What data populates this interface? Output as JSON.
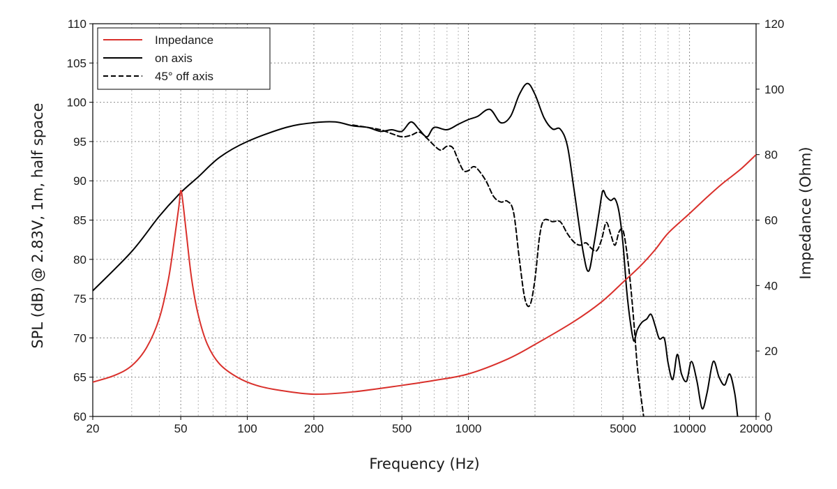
{
  "chart_data": {
    "type": "line",
    "title": "",
    "xlabel": "Frequency (Hz)",
    "ylabel_left": "SPL (dB) @ 2.83V, 1m, half space",
    "ylabel_right": "Impedance (Ohm)",
    "x_scale": "log",
    "xlim": [
      20,
      20000
    ],
    "ylim_left": [
      60,
      110
    ],
    "ylim_right": [
      0,
      120
    ],
    "grid": true,
    "legend_position": "top-left",
    "x_ticks": [
      {
        "v": 20,
        "label": "20"
      },
      {
        "v": 50,
        "label": "50"
      },
      {
        "v": 100,
        "label": "100"
      },
      {
        "v": 200,
        "label": "200"
      },
      {
        "v": 500,
        "label": "500"
      },
      {
        "v": 1000,
        "label": "1000"
      },
      {
        "v": 5000,
        "label": "5000"
      },
      {
        "v": 10000,
        "label": "10000"
      },
      {
        "v": 20000,
        "label": "20000"
      }
    ],
    "y_left_ticks": [
      {
        "v": 60,
        "label": "60"
      },
      {
        "v": 65,
        "label": "65"
      },
      {
        "v": 70,
        "label": "70"
      },
      {
        "v": 75,
        "label": "75"
      },
      {
        "v": 80,
        "label": "80"
      },
      {
        "v": 85,
        "label": "85"
      },
      {
        "v": 90,
        "label": "90"
      },
      {
        "v": 95,
        "label": "95"
      },
      {
        "v": 100,
        "label": "100"
      },
      {
        "v": 105,
        "label": "105"
      },
      {
        "v": 110,
        "label": "110"
      }
    ],
    "y_right_ticks": [
      {
        "v": 0,
        "label": "0"
      },
      {
        "v": 20,
        "label": "20"
      },
      {
        "v": 40,
        "label": "40"
      },
      {
        "v": 60,
        "label": "60"
      },
      {
        "v": 80,
        "label": "80"
      },
      {
        "v": 100,
        "label": "100"
      },
      {
        "v": 120,
        "label": "120"
      }
    ],
    "series": [
      {
        "name": "Impedance",
        "axis": "right",
        "color": "#d9302b",
        "dash": "solid",
        "points": [
          [
            20,
            10.5
          ],
          [
            25,
            12.5
          ],
          [
            30,
            15.5
          ],
          [
            35,
            21
          ],
          [
            40,
            30
          ],
          [
            44,
            42
          ],
          [
            47,
            55
          ],
          [
            49,
            64
          ],
          [
            50,
            69
          ],
          [
            51,
            66
          ],
          [
            53,
            56
          ],
          [
            56,
            42
          ],
          [
            60,
            31
          ],
          [
            66,
            22
          ],
          [
            75,
            16
          ],
          [
            90,
            12
          ],
          [
            110,
            9.5
          ],
          [
            140,
            8
          ],
          [
            200,
            6.8
          ],
          [
            300,
            7.5
          ],
          [
            500,
            9.5
          ],
          [
            700,
            11
          ],
          [
            1000,
            13
          ],
          [
            1500,
            17.5
          ],
          [
            2000,
            22
          ],
          [
            3000,
            29
          ],
          [
            4000,
            35
          ],
          [
            5000,
            41
          ],
          [
            6000,
            46
          ],
          [
            7000,
            51
          ],
          [
            8000,
            56
          ],
          [
            10000,
            62
          ],
          [
            12000,
            67
          ],
          [
            14000,
            71
          ],
          [
            17000,
            75.5
          ],
          [
            20000,
            80
          ]
        ]
      },
      {
        "name": "on axis",
        "axis": "left",
        "color": "#000000",
        "dash": "solid",
        "points": [
          [
            20,
            76
          ],
          [
            30,
            81
          ],
          [
            40,
            85.5
          ],
          [
            50,
            88.5
          ],
          [
            60,
            90.5
          ],
          [
            75,
            93
          ],
          [
            100,
            95
          ],
          [
            150,
            96.8
          ],
          [
            200,
            97.4
          ],
          [
            250,
            97.5
          ],
          [
            300,
            97
          ],
          [
            350,
            96.8
          ],
          [
            400,
            96.3
          ],
          [
            450,
            96.5
          ],
          [
            500,
            96.3
          ],
          [
            550,
            97.5
          ],
          [
            600,
            96.5
          ],
          [
            650,
            95.6
          ],
          [
            700,
            96.8
          ],
          [
            800,
            96.5
          ],
          [
            900,
            97.2
          ],
          [
            1000,
            97.8
          ],
          [
            1100,
            98.2
          ],
          [
            1250,
            99.1
          ],
          [
            1400,
            97.4
          ],
          [
            1550,
            98.2
          ],
          [
            1700,
            101
          ],
          [
            1850,
            102.4
          ],
          [
            2000,
            101
          ],
          [
            2200,
            98
          ],
          [
            2400,
            96.6
          ],
          [
            2600,
            96.6
          ],
          [
            2800,
            94.5
          ],
          [
            3000,
            89
          ],
          [
            3300,
            81
          ],
          [
            3500,
            78.5
          ],
          [
            3700,
            82
          ],
          [
            3900,
            86
          ],
          [
            4050,
            88.7
          ],
          [
            4200,
            88
          ],
          [
            4400,
            87.5
          ],
          [
            4600,
            87.7
          ],
          [
            4800,
            86
          ],
          [
            5000,
            82
          ],
          [
            5200,
            76
          ],
          [
            5400,
            72
          ],
          [
            5600,
            69.6
          ],
          [
            5800,
            71
          ],
          [
            6100,
            72
          ],
          [
            6400,
            72.4
          ],
          [
            6700,
            73
          ],
          [
            7000,
            71.5
          ],
          [
            7300,
            69.9
          ],
          [
            7700,
            69.9
          ],
          [
            8000,
            66.8
          ],
          [
            8400,
            64.7
          ],
          [
            8800,
            67.9
          ],
          [
            9200,
            65.4
          ],
          [
            9700,
            64.5
          ],
          [
            10200,
            67
          ],
          [
            10800,
            64.5
          ],
          [
            11400,
            61
          ],
          [
            12000,
            63
          ],
          [
            12800,
            67
          ],
          [
            13600,
            65
          ],
          [
            14400,
            64
          ],
          [
            15200,
            65.4
          ],
          [
            16000,
            63
          ],
          [
            16500,
            60
          ]
        ]
      },
      {
        "name": "45° off axis",
        "axis": "left",
        "color": "#000000",
        "dash": "dashed",
        "points": [
          [
            300,
            97.1
          ],
          [
            350,
            96.8
          ],
          [
            400,
            96.5
          ],
          [
            450,
            96
          ],
          [
            500,
            95.6
          ],
          [
            550,
            95.8
          ],
          [
            600,
            96.2
          ],
          [
            650,
            95.4
          ],
          [
            700,
            94.5
          ],
          [
            750,
            93.9
          ],
          [
            800,
            94.4
          ],
          [
            850,
            94.2
          ],
          [
            900,
            92.6
          ],
          [
            950,
            91.3
          ],
          [
            1000,
            91.3
          ],
          [
            1050,
            91.8
          ],
          [
            1100,
            91.5
          ],
          [
            1200,
            90
          ],
          [
            1300,
            88
          ],
          [
            1400,
            87.3
          ],
          [
            1500,
            87.4
          ],
          [
            1600,
            86
          ],
          [
            1700,
            80
          ],
          [
            1800,
            75
          ],
          [
            1900,
            74.2
          ],
          [
            2000,
            77.5
          ],
          [
            2100,
            83
          ],
          [
            2200,
            85
          ],
          [
            2400,
            84.8
          ],
          [
            2600,
            84.8
          ],
          [
            2800,
            83.3
          ],
          [
            3000,
            82.2
          ],
          [
            3200,
            81.8
          ],
          [
            3400,
            82.1
          ],
          [
            3600,
            81.4
          ],
          [
            3800,
            81.1
          ],
          [
            4000,
            82.5
          ],
          [
            4200,
            84.7
          ],
          [
            4400,
            83.2
          ],
          [
            4600,
            81.8
          ],
          [
            4800,
            83.5
          ],
          [
            5000,
            83.7
          ],
          [
            5200,
            81
          ],
          [
            5400,
            77
          ],
          [
            5600,
            72
          ],
          [
            5800,
            66.5
          ],
          [
            6000,
            63
          ],
          [
            6200,
            60
          ]
        ]
      }
    ]
  }
}
